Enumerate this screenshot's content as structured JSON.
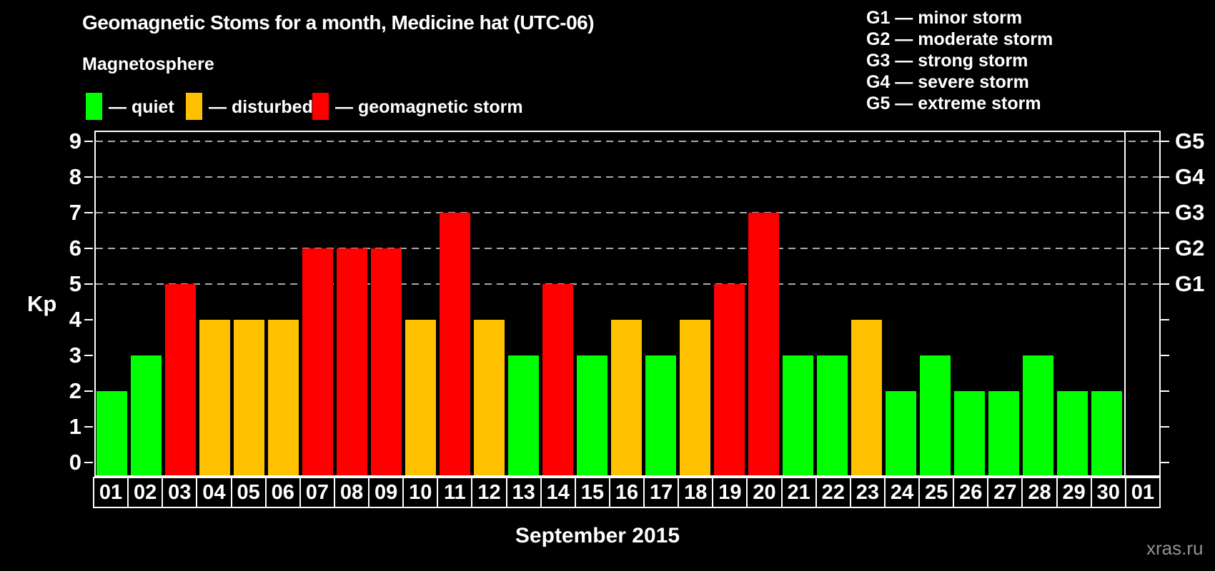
{
  "title": "Geomagnetic Stoms for a month, Medicine hat (UTC-06)",
  "magnetosphere_label": "Magnetosphere",
  "legend": [
    {
      "status": "quiet",
      "label": "— quiet",
      "color": "#00ff00"
    },
    {
      "status": "disturbed",
      "label": "— disturbed",
      "color": "#ffc000"
    },
    {
      "status": "storm",
      "label": "— geomagnetic storm",
      "color": "#ff0000"
    }
  ],
  "g_legend": [
    "G1 — minor storm",
    "G2 — moderate storm",
    "G3 — strong storm",
    "G4 — severe storm",
    "G5 — extreme storm"
  ],
  "watermark": "xras.ru",
  "chart_data": {
    "type": "bar",
    "title": "Geomagnetic Stoms for a month, Medicine hat (UTC-06)",
    "xlabel": "September 2015",
    "ylabel": "Kp",
    "ylim": [
      0,
      9
    ],
    "y_ticks": [
      0,
      1,
      2,
      3,
      4,
      5,
      6,
      7,
      8,
      9
    ],
    "gridlines_at": [
      5,
      6,
      7,
      8,
      9
    ],
    "grid": "dashed horizontal lines at storm levels only",
    "legend_position": "top-left",
    "right_axis_labels": [
      {
        "kp": 5,
        "label": "G1"
      },
      {
        "kp": 6,
        "label": "G2"
      },
      {
        "kp": 7,
        "label": "G3"
      },
      {
        "kp": 8,
        "label": "G4"
      },
      {
        "kp": 9,
        "label": "G5"
      }
    ],
    "categories": [
      "01",
      "02",
      "03",
      "04",
      "05",
      "06",
      "07",
      "08",
      "09",
      "10",
      "11",
      "12",
      "13",
      "14",
      "15",
      "16",
      "17",
      "18",
      "19",
      "20",
      "21",
      "22",
      "23",
      "24",
      "25",
      "26",
      "27",
      "28",
      "29",
      "30",
      "01"
    ],
    "values": [
      2,
      3,
      5,
      4,
      4,
      4,
      6,
      6,
      6,
      4,
      7,
      4,
      3,
      5,
      3,
      4,
      3,
      4,
      5,
      7,
      3,
      3,
      4,
      2,
      3,
      2,
      2,
      3,
      2,
      2,
      null
    ],
    "statuses": [
      "quiet",
      "quiet",
      "storm",
      "disturbed",
      "disturbed",
      "disturbed",
      "storm",
      "storm",
      "storm",
      "disturbed",
      "storm",
      "disturbed",
      "quiet",
      "storm",
      "quiet",
      "disturbed",
      "quiet",
      "disturbed",
      "storm",
      "storm",
      "quiet",
      "quiet",
      "disturbed",
      "quiet",
      "quiet",
      "quiet",
      "quiet",
      "quiet",
      "quiet",
      "quiet",
      null
    ],
    "colors": {
      "quiet": "#00ff00",
      "disturbed": "#ffc000",
      "storm": "#ff0000"
    }
  }
}
